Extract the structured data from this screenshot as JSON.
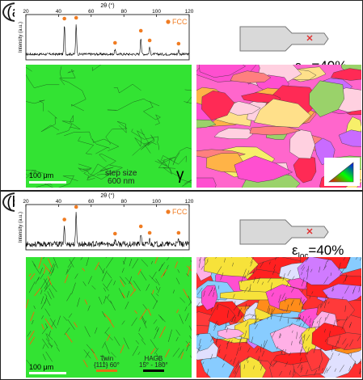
{
  "figure": {
    "panels": [
      {
        "id": "a",
        "label": "(a)",
        "xrd": {
          "axis_title": "2θ (°)",
          "x_ticks": [
            "20",
            "40",
            "60",
            "80",
            "100",
            "120"
          ],
          "y_label": "Intensity (a.u.)",
          "legend": "FCC",
          "peaks_2theta": [
            43.6,
            50.8,
            74.6,
            90.4,
            95.8,
            113.5
          ],
          "peak_heights": [
            0.72,
            0.74,
            0.12,
            0.42,
            0.18,
            0.1
          ]
        },
        "strain_label_symbol": "ε",
        "strain_label_sub": "loc",
        "strain_label_value": "=40%",
        "phase_map": {
          "scale_label": "100 μm",
          "step_size_line1": "step size",
          "step_size_line2": "600 nm",
          "phase_symbol": "γ"
        }
      },
      {
        "id": "b",
        "label": "(b)",
        "xrd": {
          "axis_title": "2θ (°)",
          "x_ticks": [
            "20",
            "40",
            "60",
            "80",
            "100",
            "120"
          ],
          "y_label": "Intensity (a.u.)",
          "legend": "FCC",
          "peaks_2theta": [
            43.6,
            50.8,
            74.6,
            90.4,
            95.8,
            113.5
          ],
          "peak_heights": [
            0.45,
            0.8,
            0.1,
            0.28,
            0.12,
            0.12
          ]
        },
        "strain_label_symbol": "ε",
        "strain_label_sub": "loc",
        "strain_label_value": "=40%",
        "phase_map": {
          "scale_label": "100 μm",
          "twin_line1": "Twin",
          "twin_line2": "{111}  60°",
          "hagb_line1": "HAGB",
          "hagb_line2": "15° - 180°"
        }
      }
    ],
    "colors": {
      "fcc_marker": "#f07c22",
      "fcc_phase_green": "#33e333",
      "twin_orange": "#e46f10",
      "specimen_fill": "#d9d9d9",
      "marker_red": "#e23030"
    }
  }
}
